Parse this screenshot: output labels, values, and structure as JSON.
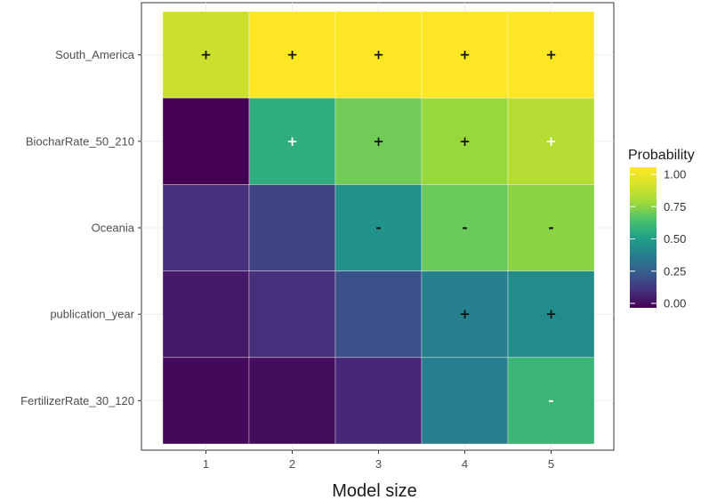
{
  "chart_data": {
    "type": "heatmap",
    "xlabel": "Model size",
    "ylabel": "",
    "x": [
      "1",
      "2",
      "3",
      "4",
      "5"
    ],
    "y": [
      "South_America",
      "BiocharRate_50_210",
      "Oceania",
      "publication_year",
      "FertilizerRate_30_120"
    ],
    "values": [
      [
        0.85,
        1.0,
        1.0,
        1.0,
        1.0
      ],
      [
        0.0,
        0.55,
        0.68,
        0.74,
        0.8
      ],
      [
        0.12,
        0.18,
        0.45,
        0.67,
        0.72
      ],
      [
        0.06,
        0.12,
        0.22,
        0.38,
        0.42
      ],
      [
        0.02,
        0.03,
        0.1,
        0.37,
        0.58
      ]
    ],
    "signs": [
      [
        "+",
        "+",
        "+",
        "+",
        "+"
      ],
      [
        "",
        "+",
        "+",
        "+",
        "+"
      ],
      [
        "",
        "",
        "-",
        "-",
        "-"
      ],
      [
        "",
        "",
        "",
        "+",
        "+"
      ],
      [
        "",
        "",
        "",
        "",
        "-"
      ]
    ],
    "sign_colors": [
      [
        "black",
        "black",
        "black",
        "black",
        "black"
      ],
      [
        "",
        "white",
        "black",
        "black",
        "white"
      ],
      [
        "",
        "",
        "black",
        "black",
        "black"
      ],
      [
        "",
        "",
        "",
        "black",
        "black"
      ],
      [
        "",
        "",
        "",
        "",
        "white"
      ]
    ],
    "legend": {
      "title": "Probability",
      "ticks": [
        "1.00",
        "0.75",
        "0.50",
        "0.25",
        "0.00"
      ],
      "position": "right"
    },
    "color_scale": "viridis",
    "range": [
      0,
      1
    ],
    "grid": true
  }
}
